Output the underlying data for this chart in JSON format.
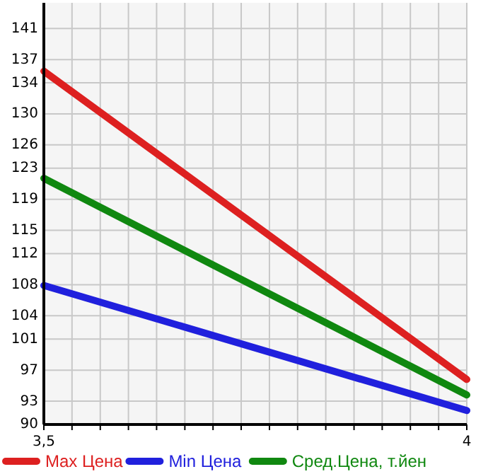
{
  "chart_data": {
    "type": "line",
    "x": [
      3.5,
      4
    ],
    "series": [
      {
        "name": "Max Цена",
        "color": "#dd2020",
        "values": [
          135.5,
          95.8
        ]
      },
      {
        "name": "Min Цена",
        "color": "#2020dd",
        "values": [
          107.9,
          91.8
        ]
      },
      {
        "name": "Сред.Цена, т.йен",
        "color": "#108810",
        "values": [
          121.7,
          93.8
        ]
      }
    ],
    "xlim": [
      3.5,
      4
    ],
    "xticks": [
      {
        "value": 3.5,
        "label": "3,5"
      },
      {
        "value": 3.5333,
        "label": null
      },
      {
        "value": 3.5667,
        "label": null
      },
      {
        "value": 3.6,
        "label": null
      },
      {
        "value": 3.6333,
        "label": null
      },
      {
        "value": 3.6667,
        "label": null
      },
      {
        "value": 3.7,
        "label": null
      },
      {
        "value": 3.7333,
        "label": null
      },
      {
        "value": 3.7667,
        "label": null
      },
      {
        "value": 3.8,
        "label": null
      },
      {
        "value": 3.8333,
        "label": null
      },
      {
        "value": 3.8667,
        "label": null
      },
      {
        "value": 3.9,
        "label": null
      },
      {
        "value": 3.9333,
        "label": null
      },
      {
        "value": 3.9667,
        "label": null
      },
      4
    ],
    "ylim": [
      90,
      144.3
    ],
    "yticks": [
      90,
      93,
      97,
      101,
      104,
      108,
      112,
      115,
      119,
      123,
      126,
      130,
      134,
      137,
      141
    ],
    "grid": true,
    "legend": "bottom",
    "marker": "none",
    "line_style": "solid"
  }
}
